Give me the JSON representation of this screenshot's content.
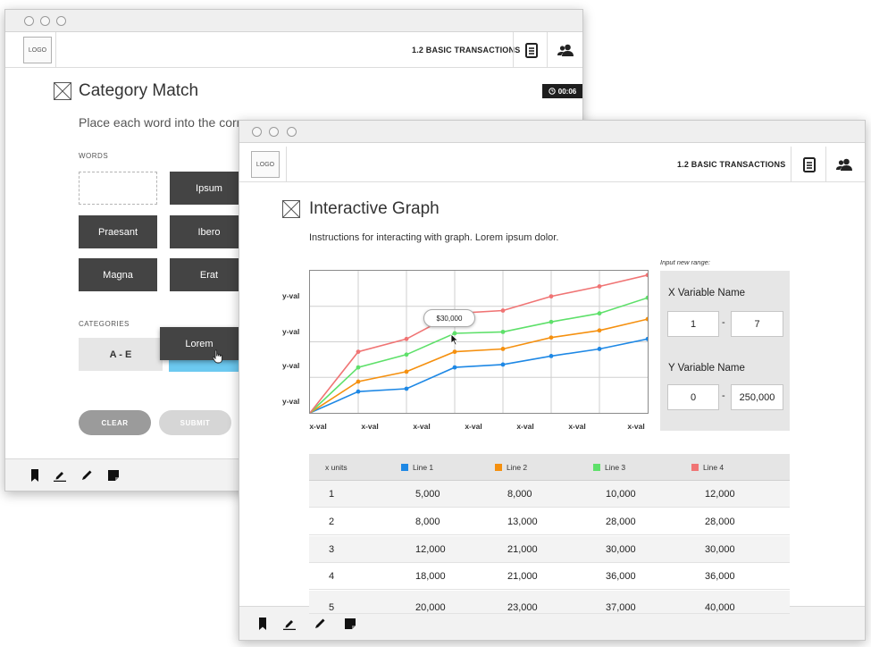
{
  "window_back": {
    "app_bar": {
      "logo": "LOGO",
      "section": "1.2 BASIC TRANSACTIONS"
    },
    "title": "Category Match",
    "timer": "00:06",
    "instruction": "Place each word into the corre",
    "words_label": "WORDS",
    "words": [
      "Ipsum",
      "Praesant",
      "Ibero",
      "Magna",
      "Erat"
    ],
    "categories_label": "CATEGORIES",
    "category_a": "A - E",
    "dragging_word": "Lorem",
    "clear_label": "CLEAR",
    "submit_label": "SUBMIT"
  },
  "window_front": {
    "app_bar": {
      "logo": "LOGO",
      "section": "1.2 BASIC TRANSACTIONS"
    },
    "title": "Interactive Graph",
    "instruction": "Instructions for interacting with graph. Lorem ipsum dolor.",
    "tooltip": "$30,000",
    "range": {
      "caption": "Input new range:",
      "x_name": "X Variable Name",
      "x_min": "1",
      "x_max": "7",
      "y_name": "Y Variable Name",
      "y_min": "0",
      "y_max": "250,000",
      "dash": "-"
    },
    "table": {
      "headers": [
        "x units",
        "Line 1",
        "Line 2",
        "Line 3",
        "Line 4"
      ],
      "rows": [
        [
          "1",
          "5,000",
          "8,000",
          "10,000",
          "12,000"
        ],
        [
          "2",
          "8,000",
          "13,000",
          "28,000",
          "28,000"
        ],
        [
          "3",
          "12,000",
          "21,000",
          "30,000",
          "30,000"
        ],
        [
          "4",
          "18,000",
          "21,000",
          "36,000",
          "36,000"
        ],
        [
          "5",
          "20,000",
          "23,000",
          "37,000",
          "40,000"
        ]
      ]
    }
  },
  "chart_data": {
    "type": "line",
    "x_tick_labels": [
      "x-val",
      "x-val",
      "x-val",
      "x-val",
      "x-val",
      "x-val",
      "x-val"
    ],
    "y_tick_labels": [
      "y-val",
      "y-val",
      "y-val",
      "y-val"
    ],
    "x": [
      0,
      1,
      2,
      3,
      4,
      5,
      6,
      7
    ],
    "ylim": [
      0,
      100
    ],
    "grid": true,
    "series": [
      {
        "name": "Line 1",
        "color": "#1E88E5",
        "values": [
          0,
          15,
          17,
          32,
          34,
          40,
          45,
          52
        ]
      },
      {
        "name": "Line 2",
        "color": "#F5900F",
        "values": [
          0,
          22,
          29,
          43,
          45,
          53,
          58,
          66
        ]
      },
      {
        "name": "Line 3",
        "color": "#5EE06A",
        "values": [
          0,
          32,
          41,
          56,
          57,
          64,
          70,
          81
        ]
      },
      {
        "name": "Line 4",
        "color": "#F07474",
        "values": [
          0,
          43,
          52,
          70,
          72,
          82,
          89,
          97
        ]
      }
    ]
  }
}
